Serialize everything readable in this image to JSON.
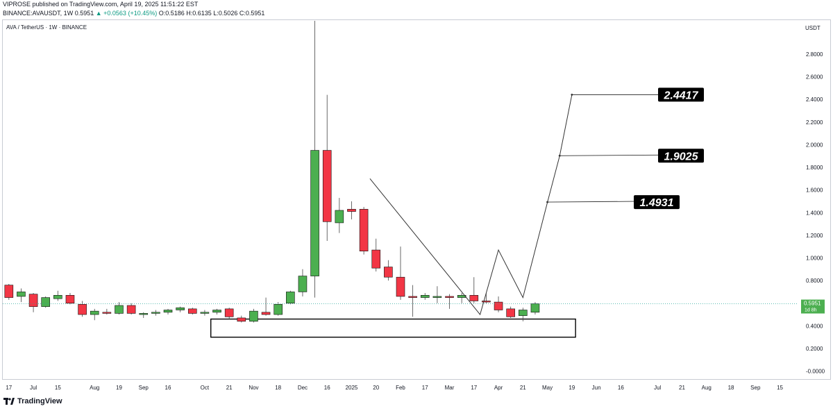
{
  "header": {
    "publisher_line": "VIPROSE published on TradingView.com, April 19, 2025 11:51:22 EST",
    "symbol": "BINANCE:AVAUSDT, 1W",
    "price": "0.5951",
    "change": "▲ +0.0563 (+10.45%)",
    "ohlc": "O:0.5186 H:0.6135 L:0.5026 C:0.5951"
  },
  "legend": {
    "title": "AVA / TetherUS · 1W · BINANCE"
  },
  "axis": {
    "currency": "USDT"
  },
  "footer": {
    "brand": "TradingView"
  },
  "colors": {
    "up": "#26a69a",
    "up_fill": "#4caf50",
    "down": "#f23645",
    "wick": "#000000"
  },
  "chart_data": {
    "type": "candlestick",
    "ylim": [
      -0.07,
      3.1
    ],
    "y_ticks": [
      {
        "v": 2.8,
        "label": "2.8000"
      },
      {
        "v": 2.6,
        "label": "2.6000"
      },
      {
        "v": 2.4,
        "label": "2.4000"
      },
      {
        "v": 2.2,
        "label": "2.2000"
      },
      {
        "v": 2.0,
        "label": "2.0000"
      },
      {
        "v": 1.8,
        "label": "1.8000"
      },
      {
        "v": 1.6,
        "label": "1.6000"
      },
      {
        "v": 1.4,
        "label": "1.4000"
      },
      {
        "v": 1.2,
        "label": "1.2000"
      },
      {
        "v": 1.0,
        "label": "1.0000"
      },
      {
        "v": 0.8,
        "label": "0.8000"
      },
      {
        "v": 0.6,
        "label": ""
      },
      {
        "v": 0.4,
        "label": "0.4000"
      },
      {
        "v": 0.2,
        "label": "0.2000"
      },
      {
        "v": 0.0,
        "label": "-0.0000"
      }
    ],
    "x_ticks": [
      "17",
      "Jul",
      "15",
      "Aug",
      "19",
      "Sep",
      "16",
      "Oct",
      "21",
      "Nov",
      "18",
      "Dec",
      "16",
      "2025",
      "20",
      "Feb",
      "17",
      "Mar",
      "17",
      "Apr",
      "21",
      "May",
      "19",
      "Jun",
      "16",
      "Jul",
      "21",
      "Aug",
      "18",
      "Sep",
      "15"
    ],
    "x_tick_index": [
      0,
      2,
      4,
      7,
      9,
      11,
      13,
      16,
      18,
      20,
      22,
      24,
      26,
      28,
      30,
      32,
      34,
      36,
      38,
      40,
      42,
      44,
      46,
      48,
      50,
      53,
      55,
      57,
      59,
      61,
      63
    ],
    "x_range": [
      -0.5,
      64.5
    ],
    "candles": [
      {
        "i": 0,
        "o": 0.76,
        "h": 0.77,
        "l": 0.63,
        "c": 0.65
      },
      {
        "i": 1,
        "o": 0.66,
        "h": 0.73,
        "l": 0.61,
        "c": 0.7
      },
      {
        "i": 2,
        "o": 0.68,
        "h": 0.69,
        "l": 0.52,
        "c": 0.57
      },
      {
        "i": 3,
        "o": 0.57,
        "h": 0.66,
        "l": 0.56,
        "c": 0.65
      },
      {
        "i": 4,
        "o": 0.64,
        "h": 0.71,
        "l": 0.62,
        "c": 0.67
      },
      {
        "i": 5,
        "o": 0.67,
        "h": 0.69,
        "l": 0.59,
        "c": 0.6
      },
      {
        "i": 6,
        "o": 0.59,
        "h": 0.62,
        "l": 0.48,
        "c": 0.5
      },
      {
        "i": 7,
        "o": 0.5,
        "h": 0.55,
        "l": 0.45,
        "c": 0.53
      },
      {
        "i": 8,
        "o": 0.52,
        "h": 0.55,
        "l": 0.5,
        "c": 0.51
      },
      {
        "i": 9,
        "o": 0.51,
        "h": 0.61,
        "l": 0.5,
        "c": 0.58
      },
      {
        "i": 10,
        "o": 0.58,
        "h": 0.6,
        "l": 0.5,
        "c": 0.51
      },
      {
        "i": 11,
        "o": 0.5,
        "h": 0.52,
        "l": 0.47,
        "c": 0.51
      },
      {
        "i": 12,
        "o": 0.51,
        "h": 0.54,
        "l": 0.49,
        "c": 0.52
      },
      {
        "i": 13,
        "o": 0.52,
        "h": 0.55,
        "l": 0.5,
        "c": 0.54
      },
      {
        "i": 14,
        "o": 0.54,
        "h": 0.57,
        "l": 0.52,
        "c": 0.56
      },
      {
        "i": 15,
        "o": 0.55,
        "h": 0.56,
        "l": 0.5,
        "c": 0.51
      },
      {
        "i": 16,
        "o": 0.51,
        "h": 0.54,
        "l": 0.49,
        "c": 0.52
      },
      {
        "i": 17,
        "o": 0.52,
        "h": 0.55,
        "l": 0.5,
        "c": 0.54
      },
      {
        "i": 18,
        "o": 0.55,
        "h": 0.56,
        "l": 0.46,
        "c": 0.48
      },
      {
        "i": 19,
        "o": 0.47,
        "h": 0.49,
        "l": 0.43,
        "c": 0.44
      },
      {
        "i": 20,
        "o": 0.44,
        "h": 0.55,
        "l": 0.43,
        "c": 0.53
      },
      {
        "i": 21,
        "o": 0.52,
        "h": 0.65,
        "l": 0.49,
        "c": 0.5
      },
      {
        "i": 22,
        "o": 0.5,
        "h": 0.61,
        "l": 0.49,
        "c": 0.59
      },
      {
        "i": 23,
        "o": 0.6,
        "h": 0.71,
        "l": 0.59,
        "c": 0.7
      },
      {
        "i": 24,
        "o": 0.7,
        "h": 0.9,
        "l": 0.66,
        "c": 0.84
      },
      {
        "i": 25,
        "o": 0.84,
        "h": 3.2,
        "l": 0.65,
        "c": 1.95
      },
      {
        "i": 26,
        "o": 1.95,
        "h": 2.44,
        "l": 1.15,
        "c": 1.32
      },
      {
        "i": 27,
        "o": 1.31,
        "h": 1.53,
        "l": 1.22,
        "c": 1.42
      },
      {
        "i": 28,
        "o": 1.43,
        "h": 1.5,
        "l": 1.34,
        "c": 1.41
      },
      {
        "i": 29,
        "o": 1.43,
        "h": 1.45,
        "l": 1.03,
        "c": 1.06
      },
      {
        "i": 30,
        "o": 1.07,
        "h": 1.17,
        "l": 0.88,
        "c": 0.91
      },
      {
        "i": 31,
        "o": 0.92,
        "h": 0.98,
        "l": 0.8,
        "c": 0.83
      },
      {
        "i": 32,
        "o": 0.83,
        "h": 1.1,
        "l": 0.63,
        "c": 0.66
      },
      {
        "i": 33,
        "o": 0.66,
        "h": 0.76,
        "l": 0.48,
        "c": 0.65
      },
      {
        "i": 34,
        "o": 0.65,
        "h": 0.69,
        "l": 0.63,
        "c": 0.67
      },
      {
        "i": 35,
        "o": 0.65,
        "h": 0.75,
        "l": 0.6,
        "c": 0.66
      },
      {
        "i": 36,
        "o": 0.66,
        "h": 0.68,
        "l": 0.55,
        "c": 0.65
      },
      {
        "i": 37,
        "o": 0.65,
        "h": 0.69,
        "l": 0.6,
        "c": 0.67
      },
      {
        "i": 38,
        "o": 0.67,
        "h": 0.83,
        "l": 0.6,
        "c": 0.62
      },
      {
        "i": 39,
        "o": 0.62,
        "h": 0.69,
        "l": 0.6,
        "c": 0.61
      },
      {
        "i": 40,
        "o": 0.61,
        "h": 0.66,
        "l": 0.52,
        "c": 0.54
      },
      {
        "i": 41,
        "o": 0.55,
        "h": 0.57,
        "l": 0.47,
        "c": 0.48
      },
      {
        "i": 42,
        "o": 0.49,
        "h": 0.56,
        "l": 0.44,
        "c": 0.54
      },
      {
        "i": 43,
        "o": 0.52,
        "h": 0.61,
        "l": 0.5,
        "c": 0.5951
      }
    ],
    "current_price": {
      "value": 0.5951,
      "label": "0.5951",
      "countdown": "1d 8h"
    },
    "support_zone": {
      "x_start": 16.5,
      "x_end": 46.3,
      "top": 0.46,
      "bottom": 0.3
    },
    "path_lines": [
      [
        [
          29.5,
          1.7
        ],
        [
          38.5,
          0.5
        ],
        [
          40.0,
          1.07
        ],
        [
          42.0,
          0.65
        ],
        [
          44.0,
          1.49
        ],
        [
          45.0,
          1.9
        ],
        [
          46.0,
          2.44
        ]
      ]
    ],
    "targets": [
      {
        "label": "2.4417",
        "value": 2.4417,
        "x_from": 46.0
      },
      {
        "label": "1.9025",
        "value": 1.9025,
        "x_from": 45.0
      },
      {
        "label": "1.4931",
        "value": 1.4931,
        "x_from": 44.0
      }
    ]
  }
}
